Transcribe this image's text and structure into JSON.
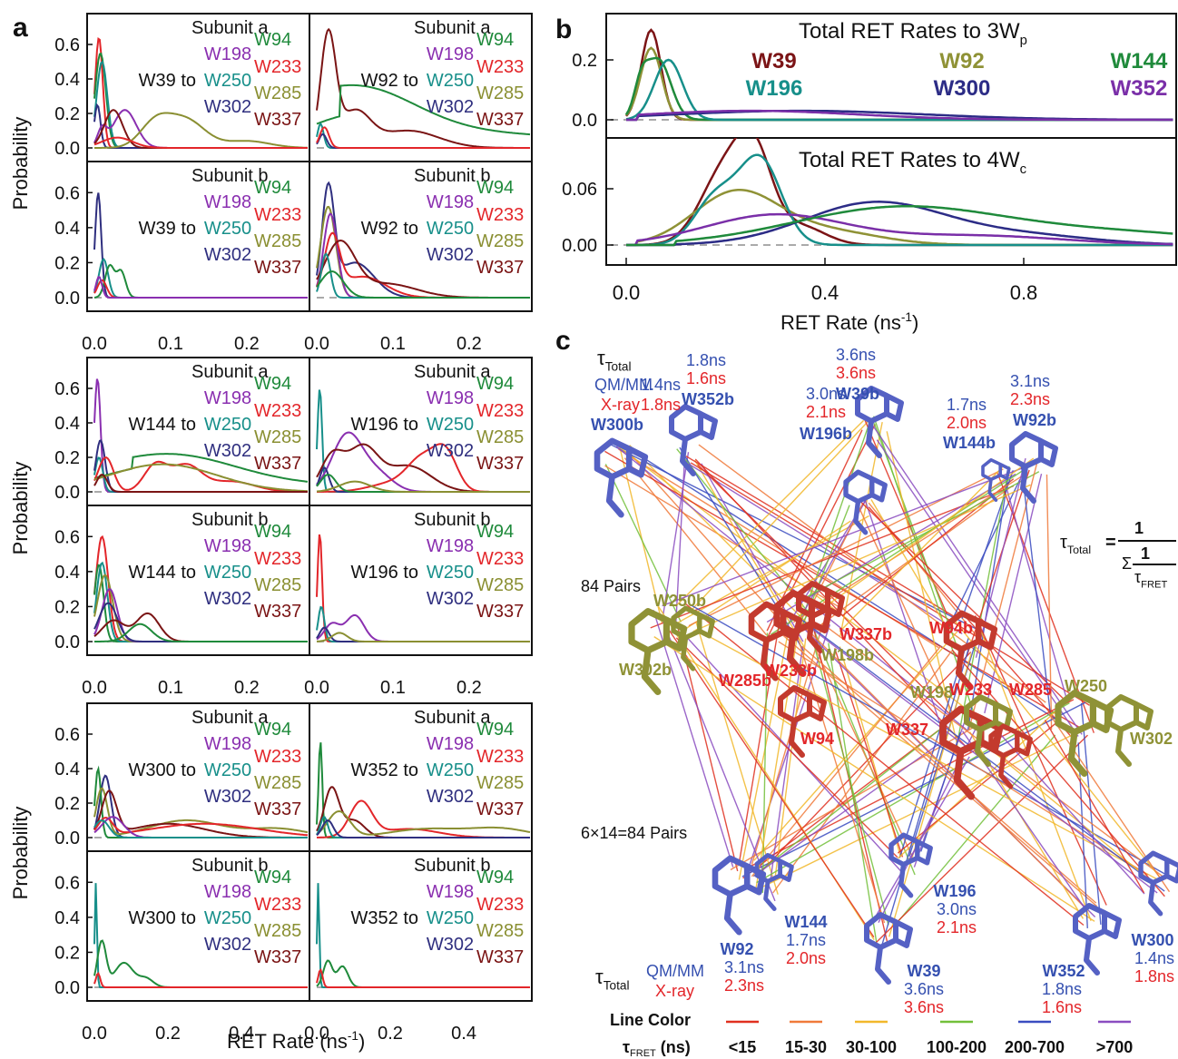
{
  "labels": {
    "a": "a",
    "b": "b",
    "c": "c"
  },
  "colors": {
    "W39": "#7b1416",
    "W92": "#8f9236",
    "W144": "#1f8a3b",
    "W196": "#178f8a",
    "W300": "#2c2c86",
    "W352": "#7a2fa8",
    "W94": "#1f8a3b",
    "W198": "#8a2fb0",
    "W233": "#e3262a",
    "W250": "#178f8a",
    "W285": "#8a8f32",
    "W302": "#2f2f7f",
    "W337": "#7a1414",
    "tube_blue": "#5561c4",
    "tube_red": "#c33a2e",
    "tube_olive": "#8f9236",
    "qm": "#3550b0",
    "xray": "#e3262a"
  },
  "panel_a": {
    "ylabel": "Probability",
    "xlabel": "RET Rate (ns",
    "xlabel_sup": "-1",
    "xlabel_end": ")",
    "row_x_ticks": [
      [
        "0.0",
        "0.1",
        "0.2"
      ],
      [
        "0.0",
        "0.1",
        "0.2"
      ],
      [
        "0.0",
        "0.2",
        "0.4"
      ]
    ],
    "y_ticks": [
      "0.0",
      "0.2",
      "0.4",
      "0.6"
    ],
    "acceptor_left": [
      "W198",
      "W250",
      "W302"
    ],
    "acceptor_right": [
      "W94",
      "W233",
      "W285",
      "W337"
    ],
    "subunit_labels": [
      "Subunit a",
      "Subunit b"
    ],
    "subplots": [
      {
        "donor": "W39 to",
        "subunit": "Subunit a"
      },
      {
        "donor": "W92 to",
        "subunit": "Subunit a"
      },
      {
        "donor": "W39 to",
        "subunit": "Subunit b"
      },
      {
        "donor": "W92 to",
        "subunit": "Subunit b"
      },
      {
        "donor": "W144 to",
        "subunit": "Subunit a"
      },
      {
        "donor": "W196 to",
        "subunit": "Subunit a"
      },
      {
        "donor": "W144 to",
        "subunit": "Subunit b"
      },
      {
        "donor": "W196 to",
        "subunit": "Subunit b"
      },
      {
        "donor": "W300 to",
        "subunit": "Subunit a"
      },
      {
        "donor": "W352 to",
        "subunit": "Subunit a"
      },
      {
        "donor": "W300 to",
        "subunit": "Subunit b"
      },
      {
        "donor": "W352 to",
        "subunit": "Subunit b"
      }
    ]
  },
  "panel_b": {
    "title_top": "Total RET Rates to 3W",
    "title_top_sub": "p",
    "title_bottom": "Total RET Rates to 4W",
    "title_bottom_sub": "c",
    "legend": [
      "W39",
      "W92",
      "W144",
      "W196",
      "W300",
      "W352"
    ],
    "yticks_top": [
      "0.0",
      "0.2"
    ],
    "yticks_bottom": [
      "0.00",
      "0.06"
    ],
    "xticks": [
      "0.0",
      "0.4",
      "0.8"
    ],
    "xlabel": "RET Rate (ns",
    "xlabel_sup": "-1",
    "xlabel_end": ")"
  },
  "panel_c": {
    "tau_symbol": "τ",
    "tau_total_sub": "Total",
    "qmmm_label": "QM/MM",
    "xray_label": "X-ray",
    "top_residues": [
      {
        "name": "W300b",
        "qm": "1.4ns",
        "xray": "1.8ns"
      },
      {
        "name": "W352b",
        "qm": "1.8ns",
        "xray": "1.6ns"
      },
      {
        "name": "W39b",
        "qm": "3.6ns",
        "xray": "3.6ns"
      },
      {
        "name": "W196b",
        "qm": "3.0ns",
        "xray": "2.1ns"
      },
      {
        "name": "W144b",
        "qm": "1.7ns",
        "xray": "2.0ns"
      },
      {
        "name": "W92b",
        "qm": "3.1ns",
        "xray": "2.3ns"
      }
    ],
    "bottom_residues": [
      {
        "name": "W92",
        "qm": "3.1ns",
        "xray": "2.3ns"
      },
      {
        "name": "W144",
        "qm": "1.7ns",
        "xray": "2.0ns"
      },
      {
        "name": "W196",
        "qm": "3.0ns",
        "xray": "2.1ns"
      },
      {
        "name": "W39",
        "qm": "3.6ns",
        "xray": "3.6ns"
      },
      {
        "name": "W352",
        "qm": "1.8ns",
        "xray": "1.6ns"
      },
      {
        "name": "W300",
        "qm": "1.4ns",
        "xray": "1.8ns"
      }
    ],
    "middle_labels": [
      "W250b",
      "W302b",
      "W337b",
      "W198b",
      "W233b",
      "W285b",
      "W94",
      "W94b",
      "W198",
      "W233",
      "W285",
      "W250",
      "W337",
      "W302"
    ],
    "pairs_top": "84 Pairs",
    "pairs_bottom": "6×14=84 Pairs",
    "formula_lhs": "τ",
    "formula_lhs_sub": "Total",
    "formula_eq": "=",
    "formula_num": "1",
    "formula_sigma": "Σ",
    "formula_inner_num": "1",
    "formula_inner_den": "τ",
    "formula_inner_den_sub": "FRET",
    "legend_title": "Line Color",
    "legend_tau": "τ",
    "legend_tau_sub": "FRET",
    "legend_unit": "(ns)",
    "legend_items": [
      {
        "label": "<15",
        "color": "#e0301f"
      },
      {
        "label": "15-30",
        "color": "#f07a3a"
      },
      {
        "label": "30-100",
        "color": "#f2b82b"
      },
      {
        "label": "100-200",
        "color": "#73c03a"
      },
      {
        "label": "200-700",
        "color": "#3a4cc0"
      },
      {
        "label": ">700",
        "color": "#8a4cc0"
      }
    ]
  },
  "chart_data": [
    {
      "type": "line",
      "panel": "a",
      "xlabel": "RET Rate (ns-1)",
      "ylabel": "Probability",
      "ylim": [
        0,
        0.7
      ],
      "note": "12 subplots of probability distributions of RET rate from each donor to acceptors W94, W198, W233, W250, W285, W302, W337"
    },
    {
      "type": "line",
      "panel": "b",
      "title": "Total RET Rates to 3Wp",
      "series": [
        {
          "name": "W39",
          "peak_x": 0.05,
          "peak_y": 0.3
        },
        {
          "name": "W92",
          "peak_x": 0.05,
          "peak_y": 0.24
        },
        {
          "name": "W144",
          "peak_x": 0.06,
          "peak_y": 0.2
        },
        {
          "name": "W196",
          "peak_x": 0.08,
          "peak_y": 0.2
        },
        {
          "name": "W300",
          "peak_x": 0.3,
          "peak_y": 0.03
        },
        {
          "name": "W352",
          "peak_x": 0.3,
          "peak_y": 0.03
        }
      ],
      "xlim": [
        -0.05,
        1.1
      ],
      "ylim": [
        -0.02,
        0.32
      ]
    },
    {
      "type": "line",
      "panel": "b",
      "title": "Total RET Rates to 4Wc",
      "series": [
        {
          "name": "W39",
          "peak_x": 0.21,
          "peak_y": 0.082
        },
        {
          "name": "W92",
          "peak_x": 0.2,
          "peak_y": 0.055
        },
        {
          "name": "W144",
          "peak_x": 0.6,
          "peak_y": 0.04
        },
        {
          "name": "W196",
          "peak_x": 0.27,
          "peak_y": 0.092
        },
        {
          "name": "W300",
          "peak_x": 0.5,
          "peak_y": 0.046
        },
        {
          "name": "W352",
          "peak_x": 0.3,
          "peak_y": 0.033
        }
      ],
      "xlim": [
        -0.05,
        1.1
      ],
      "ylim": [
        -0.005,
        0.1
      ]
    }
  ]
}
